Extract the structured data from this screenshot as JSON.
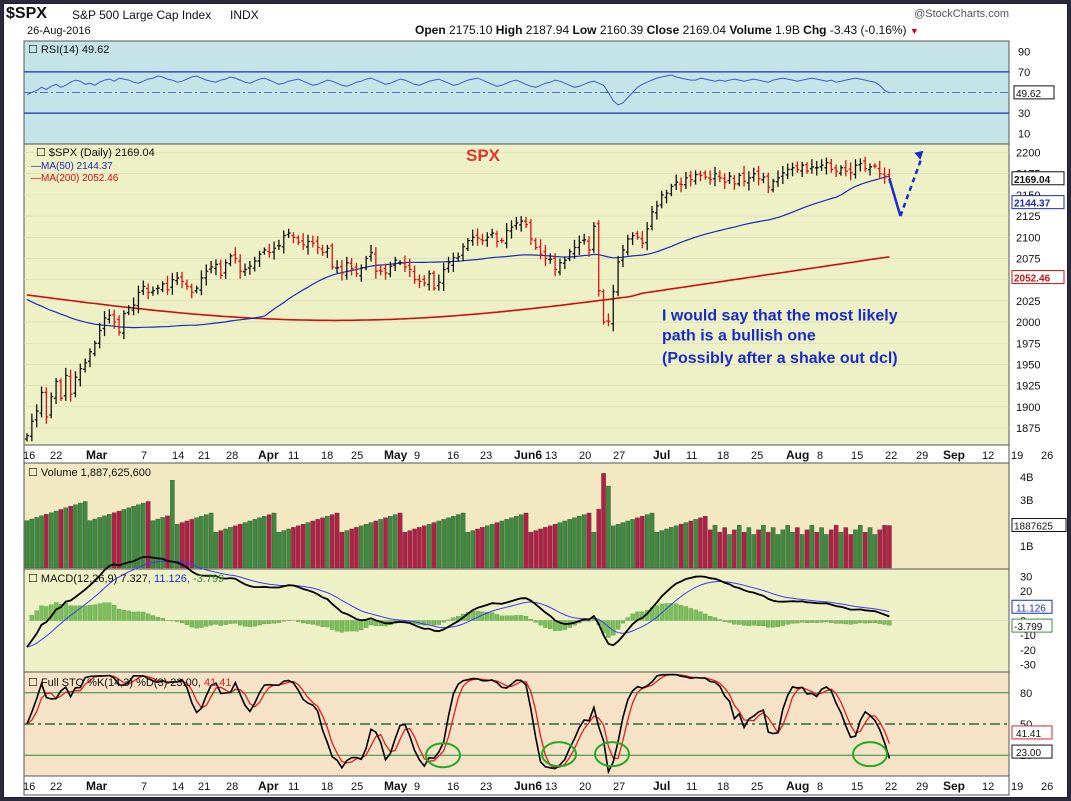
{
  "header": {
    "symbol": "$SPX",
    "name": "S&P 500 Large Cap Index",
    "exchange": "INDX",
    "date": "26-Aug-2016",
    "watermark": "@StockCharts.com",
    "open_label": "Open",
    "open": "2175.10",
    "high_label": "High",
    "high": "2187.94",
    "low_label": "Low",
    "low": "2160.39",
    "close_label": "Close",
    "close": "2169.04",
    "volume_label": "Volume",
    "volume": "1.9B",
    "chg_label": "Chg",
    "chg": "-3.43 (-0.16%)",
    "chg_arrow": "▼"
  },
  "colors": {
    "up": "#111111",
    "down": "#dd1111",
    "ma50": "#1a2bbb",
    "ma200": "#cc1111",
    "vol_up": "#3d8b3d",
    "vol_down": "#b51f46",
    "annotation": "#1a2bcc",
    "rsi_bg": "#c5e4e8",
    "price_bg": "#eef1c6",
    "vol_bg": "#f2e9c2",
    "macd_bg": "#eef1c6",
    "sto_bg": "#f6e2c6"
  },
  "chart_data": [
    {
      "type": "line",
      "title": "RSI(14) 49.62",
      "ylim": [
        0,
        100
      ],
      "yticks": [
        "90",
        "70",
        "50",
        "30",
        "10"
      ],
      "levels": [
        70,
        30
      ],
      "last_value": "49.62",
      "x": [
        0,
        1,
        2,
        3,
        4,
        5,
        6,
        7,
        8,
        9,
        10,
        11,
        12,
        13,
        14,
        15,
        16,
        17,
        18,
        19,
        20,
        21,
        22,
        23,
        24,
        25,
        26,
        27,
        28,
        29,
        30,
        31,
        32,
        33,
        34,
        35,
        36,
        37,
        38,
        39,
        40,
        41,
        42,
        43,
        44,
        45,
        46,
        47,
        48,
        49,
        50,
        51,
        52,
        53,
        54,
        55,
        56,
        57,
        58,
        59,
        60,
        61,
        62,
        63,
        64,
        65,
        66,
        67,
        68,
        69,
        70,
        71,
        72,
        73,
        74,
        75,
        76,
        77,
        78,
        79,
        80,
        81,
        82,
        83,
        84,
        85,
        86,
        87,
        88,
        89,
        90,
        91,
        92,
        93,
        94,
        95,
        96,
        97,
        98,
        99,
        100,
        101,
        102,
        103,
        104,
        105,
        106,
        107,
        108,
        109,
        110,
        111,
        112,
        113,
        114,
        115,
        116,
        117,
        118,
        119,
        120,
        121,
        122,
        123,
        124,
        125,
        126,
        127,
        128,
        129,
        130,
        131,
        132,
        133,
        134,
        135,
        136,
        137,
        138,
        139,
        140,
        141,
        142,
        143,
        144,
        145,
        146,
        147,
        148,
        149,
        150,
        151,
        152,
        153,
        154,
        155,
        156,
        157,
        158,
        159,
        160,
        161,
        162,
        163,
        164,
        165,
        166,
        167,
        168,
        169,
        170,
        171,
        172,
        173,
        174,
        175,
        176,
        177,
        178
      ],
      "series": [
        {
          "values": [
            48,
            50,
            52,
            55,
            53,
            56,
            58,
            55,
            57,
            60,
            62,
            61,
            58,
            59,
            57,
            60,
            62,
            63,
            61,
            64,
            63,
            62,
            60,
            59,
            61,
            63,
            64,
            66,
            65,
            63,
            62,
            60,
            61,
            63,
            65,
            66,
            64,
            62,
            61,
            60,
            62,
            63,
            65,
            64,
            62,
            60,
            59,
            61,
            63,
            64,
            62,
            60,
            58,
            59,
            61,
            62,
            63,
            61,
            59,
            57,
            58,
            60,
            62,
            61,
            59,
            57,
            56,
            58,
            60,
            61,
            63,
            64,
            62,
            60,
            58,
            59,
            61,
            63,
            62,
            60,
            58,
            57,
            59,
            61,
            62,
            63,
            61,
            59,
            57,
            58,
            60,
            62,
            63,
            64,
            62,
            60,
            58,
            56,
            57,
            59,
            61,
            62,
            60,
            58,
            56,
            55,
            57,
            59,
            60,
            62,
            61,
            59,
            57,
            55,
            56,
            58,
            60,
            61,
            59,
            57,
            50,
            42,
            38,
            40,
            45,
            50,
            55,
            58,
            60,
            62,
            64,
            65,
            66,
            67,
            65,
            64,
            63,
            62,
            62,
            64,
            63,
            62,
            61,
            62,
            61,
            62,
            63,
            62,
            61,
            62,
            63,
            62,
            61,
            60,
            62,
            63,
            64,
            63,
            62,
            61,
            62,
            63,
            64,
            63,
            62,
            61,
            62,
            60,
            61,
            62,
            63,
            64,
            63,
            62,
            61,
            60,
            57,
            52,
            49.62
          ]
        }
      ]
    },
    {
      "type": "candlestick",
      "title": "$SPX (Daily) 2169.04",
      "ylim": [
        1855,
        2210
      ],
      "yticks": [
        "2200",
        "2175",
        "2150",
        "2125",
        "2100",
        "2075",
        "2050",
        "2025",
        "2000",
        "1975",
        "1950",
        "1925",
        "1900",
        "1875"
      ],
      "x_ticks": [
        "16",
        "22",
        "Mar",
        "7",
        "14",
        "21",
        "28",
        "Apr",
        "11",
        "18",
        "25",
        "May",
        "9",
        "16",
        "23",
        "Jun6",
        "13",
        "20",
        "27",
        "Jul",
        "11",
        "18",
        "25",
        "Aug",
        "8",
        "15",
        "22",
        "29",
        "Sep",
        "12",
        "19",
        "26"
      ],
      "last_close": "2169.04",
      "closes": [
        1866,
        1883,
        1895,
        1917,
        1888,
        1912,
        1930,
        1910,
        1937,
        1915,
        1935,
        1945,
        1952,
        1965,
        1975,
        1990,
        2005,
        2008,
        2000,
        1988,
        2010,
        2017,
        2020,
        2035,
        2042,
        2035,
        2037,
        2040,
        2045,
        2038,
        2050,
        2052,
        2048,
        2042,
        2035,
        2040,
        2052,
        2060,
        2065,
        2068,
        2055,
        2070,
        2078,
        2075,
        2060,
        2062,
        2066,
        2072,
        2080,
        2085,
        2082,
        2087,
        2090,
        2102,
        2105,
        2100,
        2094,
        2091,
        2095,
        2093,
        2088,
        2082,
        2087,
        2065,
        2064,
        2058,
        2070,
        2063,
        2057,
        2064,
        2075,
        2082,
        2060,
        2060,
        2058,
        2066,
        2073,
        2070,
        2065,
        2062,
        2050,
        2048,
        2046,
        2057,
        2040,
        2047,
        2062,
        2070,
        2076,
        2077,
        2089,
        2096,
        2100,
        2099,
        2096,
        2100,
        2105,
        2095,
        2096,
        2108,
        2112,
        2117,
        2119,
        2115,
        2098,
        2088,
        2080,
        2075,
        2074,
        2062,
        2070,
        2073,
        2083,
        2088,
        2094,
        2097,
        2085,
        2113,
        2037,
        2000,
        2001,
        2036,
        2071,
        2085,
        2098,
        2102,
        2100,
        2093,
        2110,
        2130,
        2137,
        2150,
        2152,
        2160,
        2165,
        2162,
        2170,
        2168,
        2174,
        2173,
        2171,
        2168,
        2175,
        2170,
        2165,
        2172,
        2163,
        2173,
        2166,
        2170,
        2175,
        2169,
        2171,
        2159,
        2166,
        2170,
        2176,
        2180,
        2182,
        2180,
        2185,
        2178,
        2183,
        2182,
        2185,
        2188,
        2180,
        2178,
        2182,
        2178,
        2176,
        2185,
        2187,
        2181,
        2183,
        2184,
        2175,
        2172,
        2169.04
      ],
      "series": [
        {
          "name": "MA(50) 2144.37",
          "last": "2144.37"
        },
        {
          "name": "MA(200) 2052.46",
          "last": "2052.46"
        }
      ],
      "annotations": [
        "SPX",
        "I would say that the most likely",
        "path is a bullish one",
        " (Possibly after a shake out dcl)"
      ]
    },
    {
      "type": "bar",
      "title": "Volume 1,887,625,600",
      "yticks": [
        "4B",
        "3B",
        "2B",
        "1B"
      ],
      "last_value": "1887625600",
      "last_label": "1887625"
    },
    {
      "type": "line",
      "title": "MACD(12,26,9) 7.327, 11.126, -3.799",
      "macd": "7.327",
      "signal": "11.126",
      "histogram": "-3.799",
      "yticks": [
        "30",
        "20",
        "10",
        "0",
        "-10",
        "-20",
        "-30"
      ],
      "ylim": [
        -35,
        35
      ],
      "signal_label": "11.126"
    },
    {
      "type": "line",
      "title": "Full STO %K(14,3) %D(3) 23.00, 41.41",
      "k": "23.00",
      "d": "41.41",
      "ylim": [
        0,
        100
      ],
      "yticks": [
        "80",
        "50",
        "20"
      ],
      "levels": [
        80,
        50,
        20
      ],
      "circled_lows": 5
    }
  ],
  "panels": {
    "rsi": {
      "label": "RSI(14)",
      "value": "49.62"
    },
    "price": {
      "label": "$SPX (Daily)",
      "value": "2169.04",
      "ma50_label": "MA(50)",
      "ma50_value": "2144.37",
      "ma200_label": "MA(200)",
      "ma200_value": "2052.46",
      "spx_label": "SPX"
    },
    "annotation": {
      "line1": "I would say that the most likely",
      "line2": "path is a bullish one",
      "line3": " (Possibly after a shake out dcl)"
    },
    "volume": {
      "label": "Volume",
      "value": "1,887,625,600"
    },
    "macd": {
      "label": "MACD(12,26,9)",
      "macd": "7.327,",
      "signal": "11.126,",
      "hist": "-3.799"
    },
    "sto": {
      "label": "Full STO %K(14,3) %D(3)",
      "k": "23.00,",
      "d": "41.41"
    }
  }
}
